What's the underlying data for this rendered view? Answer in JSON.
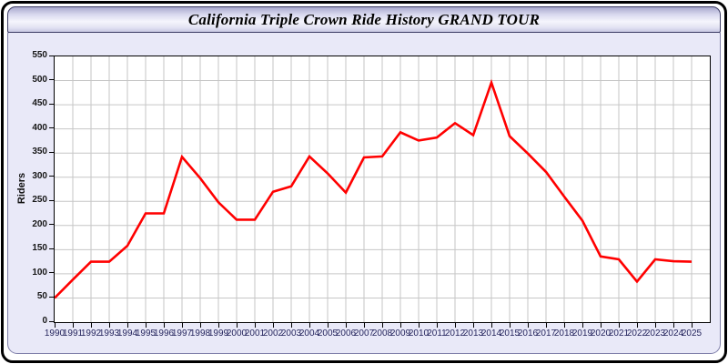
{
  "header": {
    "title": "California Triple Crown Ride History GRAND TOUR"
  },
  "colors": {
    "line": "#ff0000",
    "panel_bg": "#e9e9f8",
    "plot_bg": "#ffffff",
    "grid": "#c6c6c6",
    "frame_border": "#000000"
  },
  "chart_data": {
    "type": "line",
    "title": "California Triple Crown Ride History GRAND TOUR",
    "xlabel": "",
    "ylabel": "Riders",
    "ylim": [
      0,
      550
    ],
    "ytick_step": 50,
    "grid": true,
    "legend": false,
    "x": [
      1990,
      1991,
      1992,
      1993,
      1994,
      1995,
      1996,
      1997,
      1998,
      1999,
      2000,
      2001,
      2002,
      2003,
      2004,
      2005,
      2006,
      2007,
      2008,
      2009,
      2010,
      2011,
      2012,
      2013,
      2014,
      2015,
      2016,
      2017,
      2018,
      2019,
      2020,
      2021,
      2022,
      2023,
      2024,
      2025
    ],
    "series": [
      {
        "name": "Riders",
        "values": [
          50,
          88,
          125,
          125,
          158,
          225,
          225,
          342,
          298,
          248,
          212,
          212,
          270,
          281,
          343,
          308,
          268,
          341,
          343,
          393,
          376,
          382,
          412,
          387,
          496,
          385,
          349,
          311,
          260,
          210,
          136,
          130,
          84,
          130,
          126,
          125
        ]
      }
    ]
  }
}
